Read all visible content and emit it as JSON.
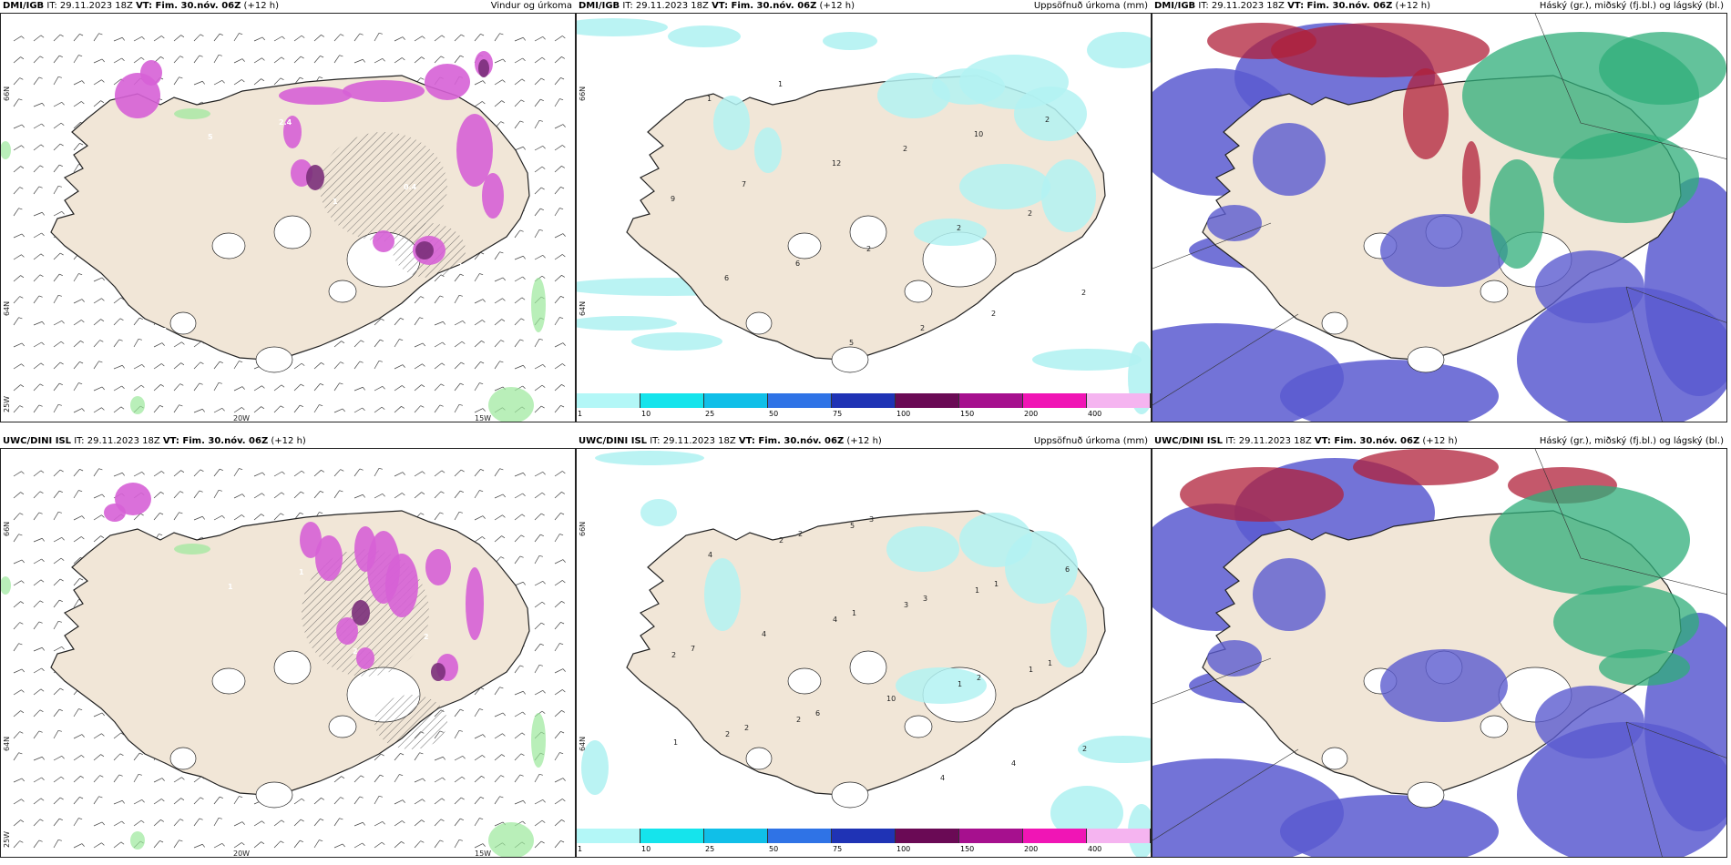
{
  "colors": {
    "land": "#f1e6d7",
    "sea": "#ffffff",
    "coast": "#222222",
    "precip_light": "#b3f2f2",
    "precip_magenta": "#d660d6",
    "purple": "#7a2f7a",
    "hail": "#5b5bd0",
    "middle": "#2fae7a",
    "high": "#b0203a"
  },
  "panels": [
    {
      "id": "dmi-wind",
      "model": "DMI/IGB",
      "it_label": "IT: 29.11.2023 18Z",
      "vt_label": "VT: Fim. 30.nóv. 06Z",
      "lead": "(+12 h)",
      "product": "Vindur og úrkoma",
      "axis_labels": [
        "66N",
        "64N",
        "25W",
        "20W",
        "15W"
      ],
      "numbers": [
        "1",
        "5",
        "1",
        "2",
        "1.5",
        "2.4",
        "0.4"
      ]
    },
    {
      "id": "dmi-accum",
      "model": "DMI/IGB",
      "it_label": "IT: 29.11.2023 18Z",
      "vt_label": "VT: Fim. 30.nóv. 06Z",
      "lead": "(+12 h)",
      "product": "Uppsöfnuð úrkoma (mm)",
      "axis_labels": [
        "66N",
        "64N"
      ],
      "numbers": [
        "1",
        "12",
        "2",
        "2",
        "1",
        "2",
        "2",
        "6",
        "5",
        "10",
        "9",
        "6",
        "2",
        "2",
        "7",
        "2",
        "2"
      ]
    },
    {
      "id": "dmi-cloud",
      "model": "DMI/IGB",
      "it_label": "IT: 29.11.2023 18Z",
      "vt_label": "VT: Fim. 30.nóv. 06Z",
      "lead": "(+12 h)",
      "product": "Háský (gr.), miðský (fj.bl.) og lágský (bl.)",
      "axis_labels": [],
      "numbers": []
    },
    {
      "id": "uwc-wind",
      "model": "UWC/DINI ISL",
      "it_label": "IT: 29.11.2023 18Z",
      "vt_label": "VT: Fim. 30.nóv. 06Z",
      "lead": "(+12 h)",
      "product": "",
      "axis_labels": [
        "66N",
        "64N",
        "25W",
        "20W",
        "15W"
      ],
      "numbers": [
        "1",
        "2",
        "1.5",
        "0.8",
        "1",
        "2"
      ]
    },
    {
      "id": "uwc-accum",
      "model": "UWC/DINI ISL",
      "it_label": "IT: 29.11.2023 18Z",
      "vt_label": "VT: Fim. 30.nóv. 06Z",
      "lead": "(+12 h)",
      "product": "Uppsöfnuð úrkoma (mm)",
      "axis_labels": [
        "66N",
        "64N"
      ],
      "numbers": [
        "1",
        "2",
        "1",
        "2",
        "3",
        "1",
        "2",
        "3",
        "1",
        "7",
        "6",
        "4",
        "6",
        "4",
        "10",
        "4",
        "4",
        "4",
        "1",
        "2",
        "2",
        "3",
        "1",
        "2",
        "5",
        "1",
        "2",
        "2"
      ]
    },
    {
      "id": "uwc-cloud",
      "model": "UWC/DINI ISL",
      "it_label": "IT: 29.11.2023 18Z",
      "vt_label": "VT: Fim. 30.nóv. 06Z",
      "lead": "(+12 h)",
      "product": "Háský (gr.), miðský (fj.bl.) og lágský (bl.)",
      "axis_labels": [],
      "numbers": []
    }
  ],
  "colorbar": {
    "ticks": [
      "1",
      "10",
      "25",
      "50",
      "75",
      "100",
      "150",
      "200",
      "400"
    ],
    "colors": [
      "#b3f7f7",
      "#15e4ec",
      "#10bfe8",
      "#2f73e6",
      "#1f33b5",
      "#6a0a55",
      "#a6108e",
      "#f015b5",
      "#f5b4f0"
    ]
  }
}
